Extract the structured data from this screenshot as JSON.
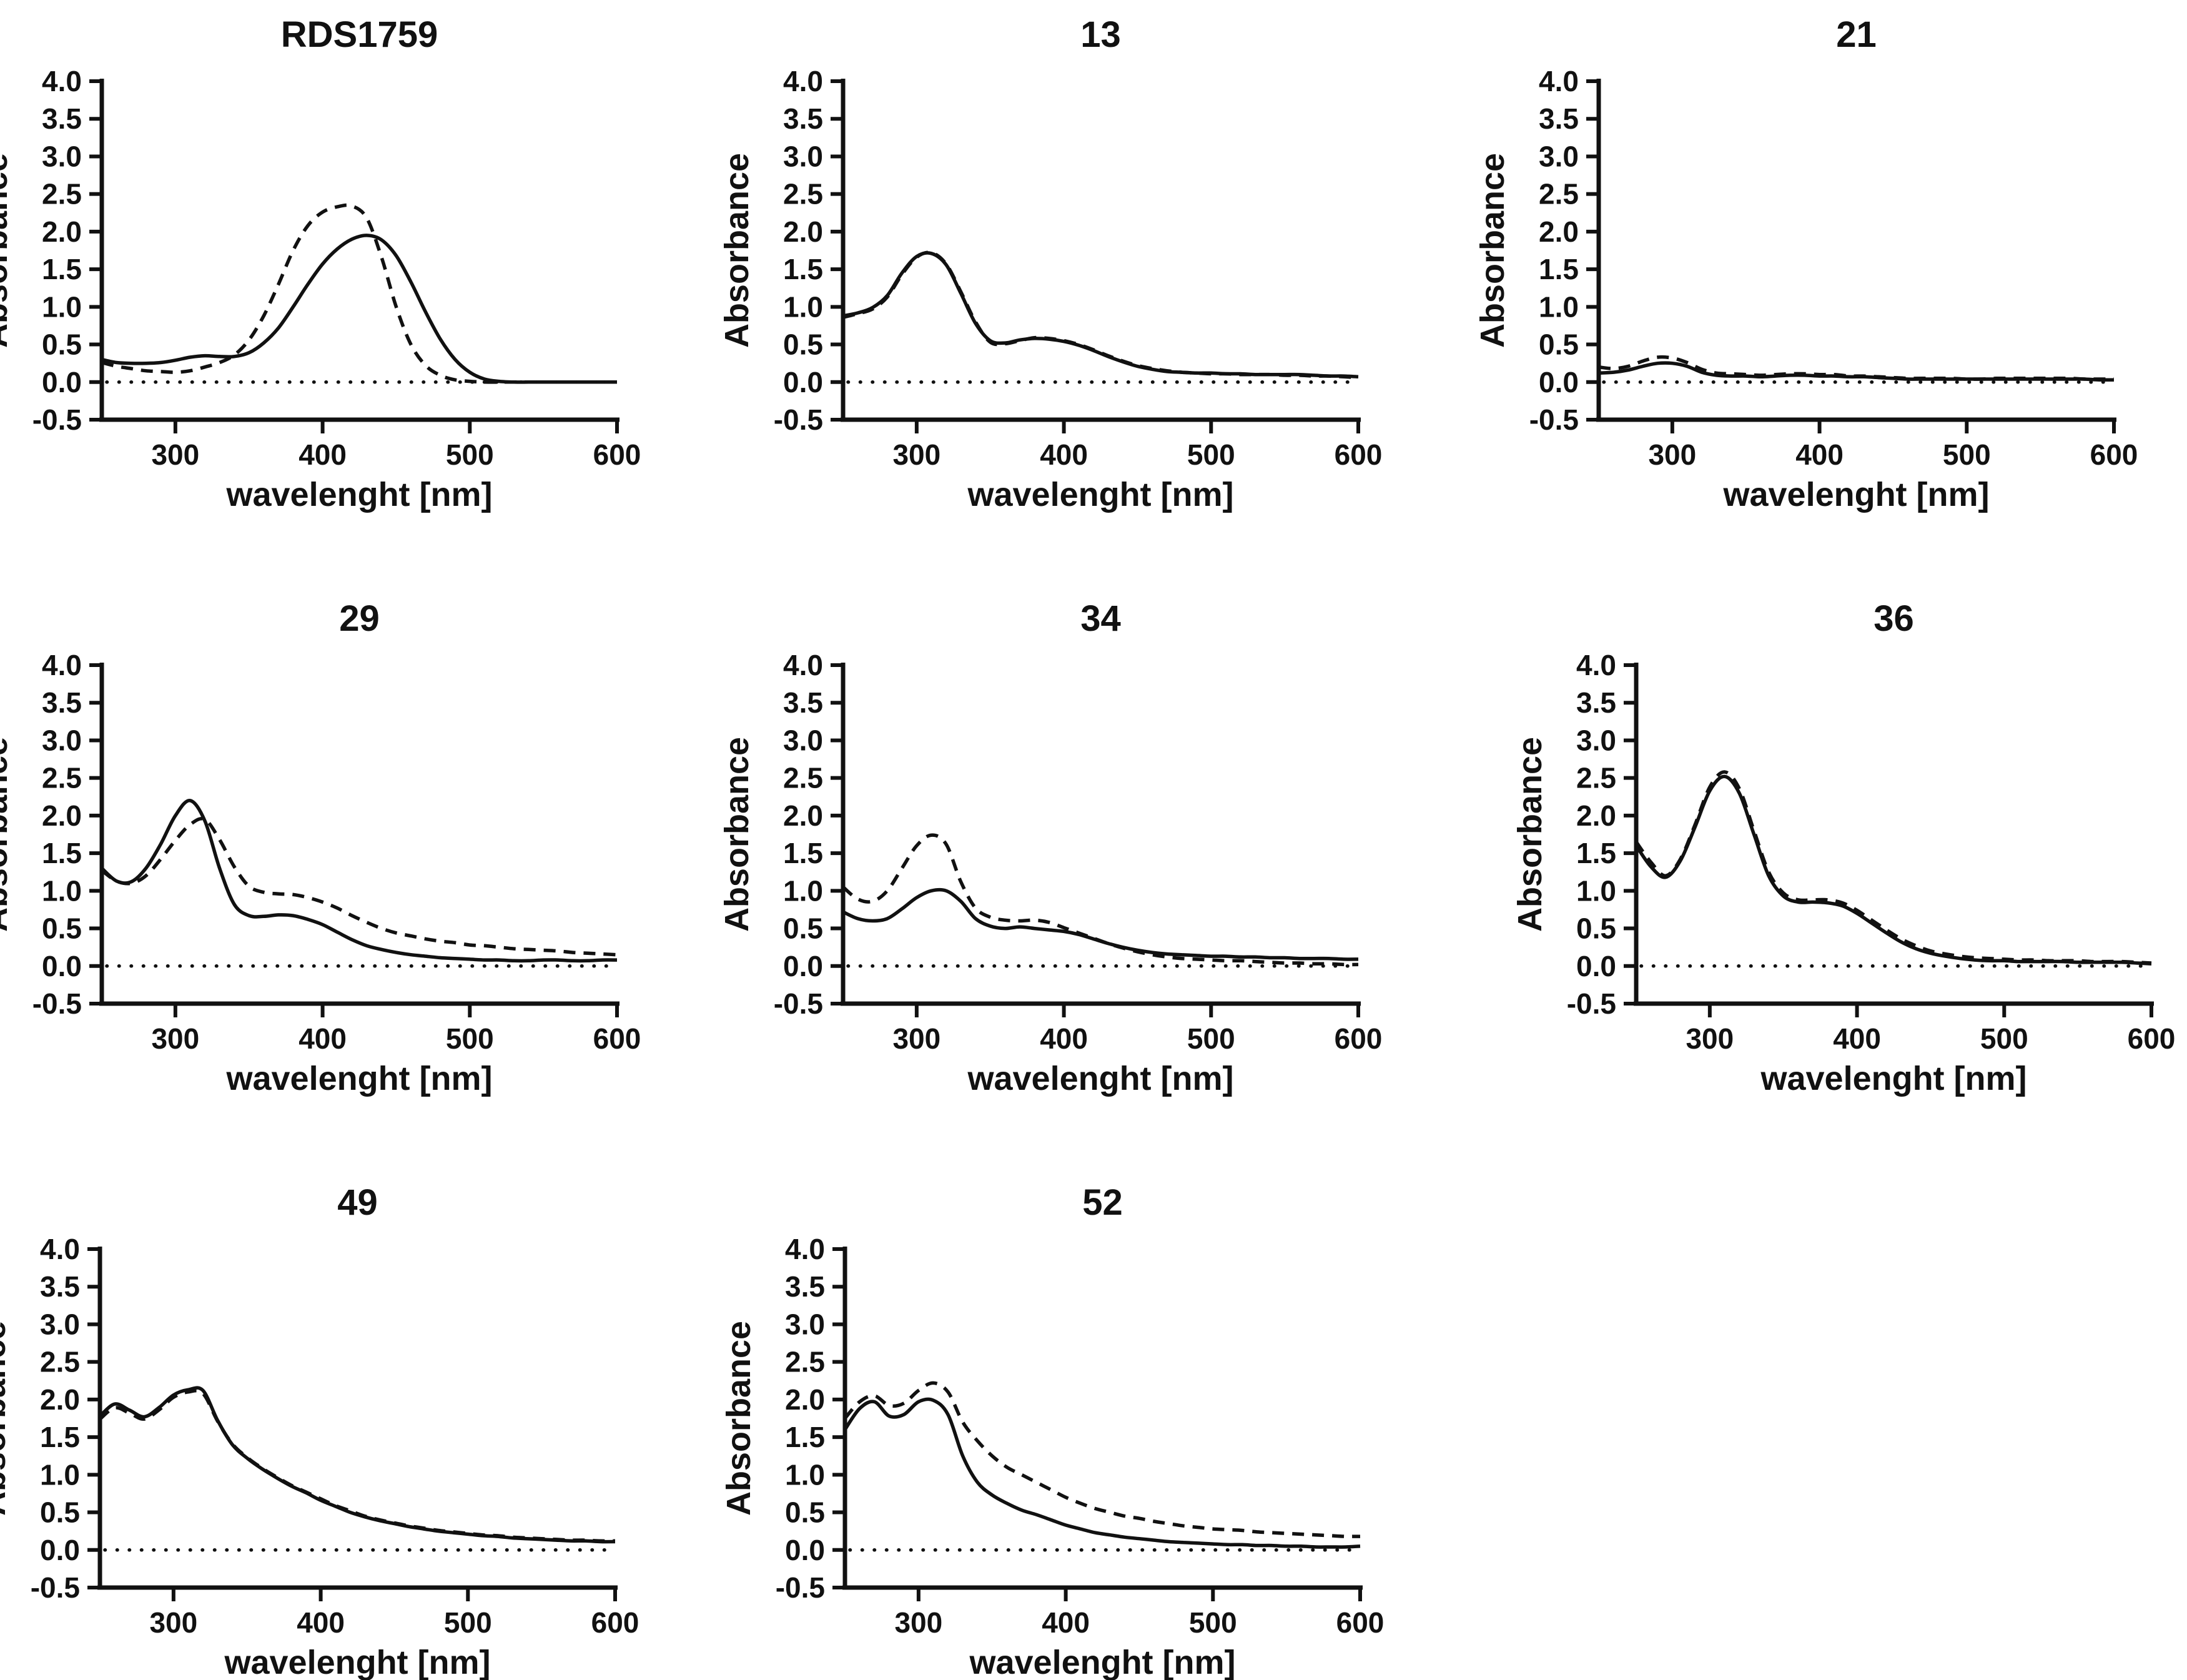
{
  "figure": {
    "background": "#ffffff",
    "ink_color": "#111111",
    "axis": {
      "xlabel": "wavelenght [nm]",
      "ylabel": "Absorbance",
      "xlim": [
        250,
        600
      ],
      "ylim": [
        -0.5,
        4.0
      ],
      "xticks": [
        300,
        400,
        500,
        600
      ],
      "xtick_labels": [
        "300",
        "400",
        "500",
        "600"
      ],
      "yticks": [
        4.0,
        3.5,
        3.0,
        2.5,
        2.0,
        1.5,
        1.0,
        0.5,
        0.0,
        -0.5
      ],
      "ytick_labels": [
        "4.0",
        "3.5",
        "3.0",
        "2.5",
        "2.0",
        "1.5",
        "1.0",
        "0.5",
        "0.0",
        "-0.5"
      ],
      "baseline": 0.0
    },
    "x_nm": [
      250,
      260,
      270,
      280,
      290,
      300,
      310,
      320,
      330,
      340,
      350,
      360,
      370,
      380,
      390,
      400,
      410,
      420,
      430,
      440,
      450,
      460,
      470,
      480,
      490,
      500,
      510,
      520,
      530,
      540,
      550,
      560,
      570,
      580,
      590,
      600
    ]
  },
  "chart_data": [
    {
      "title": "RDS1759",
      "type": "line",
      "xlabel": "wavelenght [nm]",
      "ylabel": "Absorbance",
      "xlim": [
        250,
        600
      ],
      "ylim": [
        -0.5,
        4.0
      ],
      "grid": false,
      "legend": "none",
      "series": [
        {
          "name": "solid-spectrum",
          "style": "solid",
          "y": [
            0.3,
            0.26,
            0.25,
            0.25,
            0.26,
            0.29,
            0.33,
            0.35,
            0.34,
            0.34,
            0.39,
            0.52,
            0.72,
            1.0,
            1.3,
            1.57,
            1.77,
            1.9,
            1.95,
            1.89,
            1.68,
            1.33,
            0.93,
            0.57,
            0.3,
            0.13,
            0.04,
            0.01,
            0.0,
            0.0,
            0.0,
            0.0,
            0.0,
            0.0,
            0.0,
            0.0
          ]
        },
        {
          "name": "dashed-spectrum",
          "style": "dashed",
          "y": [
            0.26,
            0.21,
            0.18,
            0.15,
            0.14,
            0.13,
            0.15,
            0.2,
            0.26,
            0.36,
            0.56,
            0.88,
            1.3,
            1.75,
            2.08,
            2.26,
            2.33,
            2.34,
            2.18,
            1.66,
            1.0,
            0.5,
            0.22,
            0.09,
            0.03,
            0.01,
            0.0,
            0.0,
            0.0,
            0.0,
            0.0,
            0.0,
            0.0,
            0.0,
            0.0,
            0.0
          ]
        }
      ]
    },
    {
      "title": "13",
      "type": "line",
      "xlabel": "wavelenght [nm]",
      "ylabel": "Absorbance",
      "xlim": [
        250,
        600
      ],
      "ylim": [
        -0.5,
        4.0
      ],
      "grid": false,
      "legend": "none",
      "series": [
        {
          "name": "solid-spectrum",
          "style": "solid",
          "y": [
            0.88,
            0.92,
            0.99,
            1.15,
            1.45,
            1.67,
            1.71,
            1.56,
            1.18,
            0.78,
            0.55,
            0.52,
            0.56,
            0.58,
            0.57,
            0.54,
            0.49,
            0.42,
            0.34,
            0.27,
            0.21,
            0.17,
            0.14,
            0.13,
            0.12,
            0.12,
            0.11,
            0.11,
            0.1,
            0.1,
            0.1,
            0.1,
            0.09,
            0.08,
            0.08,
            0.07
          ]
        },
        {
          "name": "dashed-spectrum",
          "style": "dashed",
          "y": [
            0.86,
            0.91,
            0.97,
            1.13,
            1.43,
            1.66,
            1.72,
            1.57,
            1.2,
            0.8,
            0.53,
            0.51,
            0.55,
            0.59,
            0.58,
            0.55,
            0.5,
            0.43,
            0.35,
            0.28,
            0.22,
            0.18,
            0.15,
            0.13,
            0.12,
            0.11,
            0.11,
            0.1,
            0.1,
            0.1,
            0.09,
            0.09,
            0.08,
            0.08,
            0.07,
            0.06
          ]
        }
      ]
    },
    {
      "title": "21",
      "type": "line",
      "xlabel": "wavelenght [nm]",
      "ylabel": "Absorbance",
      "xlim": [
        250,
        600
      ],
      "ylim": [
        -0.5,
        4.0
      ],
      "grid": false,
      "legend": "none",
      "series": [
        {
          "name": "solid-spectrum",
          "style": "solid",
          "y": [
            0.12,
            0.13,
            0.16,
            0.21,
            0.25,
            0.25,
            0.21,
            0.13,
            0.09,
            0.08,
            0.08,
            0.07,
            0.08,
            0.09,
            0.09,
            0.08,
            0.08,
            0.07,
            0.07,
            0.06,
            0.05,
            0.04,
            0.04,
            0.04,
            0.04,
            0.04,
            0.04,
            0.04,
            0.04,
            0.04,
            0.04,
            0.04,
            0.04,
            0.04,
            0.03,
            0.03
          ]
        },
        {
          "name": "dashed-spectrum",
          "style": "dashed",
          "y": [
            0.2,
            0.18,
            0.21,
            0.28,
            0.33,
            0.32,
            0.26,
            0.17,
            0.12,
            0.11,
            0.1,
            0.09,
            0.1,
            0.11,
            0.11,
            0.1,
            0.1,
            0.08,
            0.08,
            0.07,
            0.06,
            0.05,
            0.05,
            0.05,
            0.05,
            0.04,
            0.04,
            0.05,
            0.05,
            0.05,
            0.05,
            0.05,
            0.05,
            0.04,
            0.04,
            0.04
          ]
        }
      ]
    },
    {
      "title": "29",
      "type": "line",
      "xlabel": "wavelenght [nm]",
      "ylabel": "Absorbance",
      "xlim": [
        250,
        600
      ],
      "ylim": [
        -0.5,
        4.0
      ],
      "grid": false,
      "legend": "none",
      "series": [
        {
          "name": "solid-spectrum",
          "style": "solid",
          "y": [
            1.3,
            1.13,
            1.12,
            1.3,
            1.62,
            2.0,
            2.2,
            1.93,
            1.3,
            0.82,
            0.67,
            0.66,
            0.68,
            0.67,
            0.62,
            0.55,
            0.45,
            0.35,
            0.27,
            0.22,
            0.18,
            0.15,
            0.13,
            0.11,
            0.1,
            0.09,
            0.08,
            0.08,
            0.07,
            0.07,
            0.08,
            0.08,
            0.07,
            0.07,
            0.08,
            0.08
          ]
        },
        {
          "name": "dashed-spectrum",
          "style": "dashed",
          "y": [
            1.27,
            1.13,
            1.1,
            1.2,
            1.42,
            1.67,
            1.88,
            1.95,
            1.68,
            1.32,
            1.06,
            0.98,
            0.96,
            0.95,
            0.91,
            0.85,
            0.77,
            0.67,
            0.58,
            0.5,
            0.44,
            0.4,
            0.36,
            0.33,
            0.31,
            0.28,
            0.27,
            0.25,
            0.23,
            0.22,
            0.21,
            0.2,
            0.18,
            0.17,
            0.16,
            0.15
          ]
        }
      ]
    },
    {
      "title": "34",
      "type": "line",
      "xlabel": "wavelenght [nm]",
      "ylabel": "Absorbance",
      "xlim": [
        250,
        600
      ],
      "ylim": [
        -0.5,
        4.0
      ],
      "grid": false,
      "legend": "none",
      "series": [
        {
          "name": "solid-spectrum",
          "style": "solid",
          "y": [
            0.72,
            0.63,
            0.6,
            0.63,
            0.76,
            0.91,
            1.0,
            1.0,
            0.86,
            0.63,
            0.53,
            0.5,
            0.52,
            0.5,
            0.48,
            0.46,
            0.42,
            0.36,
            0.3,
            0.25,
            0.21,
            0.18,
            0.16,
            0.15,
            0.14,
            0.13,
            0.13,
            0.12,
            0.12,
            0.11,
            0.11,
            0.1,
            0.1,
            0.1,
            0.09,
            0.09
          ]
        },
        {
          "name": "dashed-spectrum",
          "style": "dashed",
          "y": [
            1.05,
            0.89,
            0.86,
            1.0,
            1.3,
            1.6,
            1.74,
            1.62,
            1.12,
            0.77,
            0.65,
            0.61,
            0.6,
            0.61,
            0.58,
            0.51,
            0.44,
            0.37,
            0.3,
            0.24,
            0.19,
            0.15,
            0.12,
            0.1,
            0.09,
            0.08,
            0.07,
            0.07,
            0.06,
            0.05,
            0.04,
            0.04,
            0.03,
            0.03,
            0.02,
            0.02
          ]
        }
      ]
    },
    {
      "title": "36",
      "type": "line",
      "xlabel": "wavelenght [nm]",
      "ylabel": "Absorbance",
      "xlim": [
        250,
        600
      ],
      "ylim": [
        -0.5,
        4.0
      ],
      "grid": false,
      "legend": "none",
      "series": [
        {
          "name": "solid-spectrum",
          "style": "solid",
          "y": [
            1.6,
            1.32,
            1.18,
            1.4,
            1.85,
            2.33,
            2.52,
            2.3,
            1.75,
            1.2,
            0.93,
            0.85,
            0.85,
            0.84,
            0.8,
            0.7,
            0.57,
            0.44,
            0.32,
            0.23,
            0.17,
            0.13,
            0.1,
            0.08,
            0.07,
            0.07,
            0.06,
            0.06,
            0.06,
            0.06,
            0.05,
            0.05,
            0.05,
            0.05,
            0.04,
            0.03
          ]
        },
        {
          "name": "dashed-spectrum",
          "style": "dashed",
          "y": [
            1.65,
            1.38,
            1.2,
            1.42,
            1.88,
            2.38,
            2.58,
            2.36,
            1.8,
            1.25,
            0.97,
            0.88,
            0.88,
            0.88,
            0.84,
            0.74,
            0.61,
            0.48,
            0.36,
            0.27,
            0.2,
            0.16,
            0.13,
            0.11,
            0.1,
            0.09,
            0.08,
            0.08,
            0.07,
            0.07,
            0.07,
            0.06,
            0.06,
            0.06,
            0.05,
            0.04
          ]
        }
      ]
    },
    {
      "title": "49",
      "type": "line",
      "xlabel": "wavelenght [nm]",
      "ylabel": "Absorbance",
      "xlim": [
        250,
        600
      ],
      "ylim": [
        -0.5,
        4.0
      ],
      "grid": false,
      "legend": "none",
      "series": [
        {
          "name": "solid-spectrum",
          "style": "solid",
          "y": [
            1.78,
            1.94,
            1.86,
            1.77,
            1.89,
            2.06,
            2.13,
            2.12,
            1.72,
            1.4,
            1.22,
            1.08,
            0.96,
            0.85,
            0.76,
            0.66,
            0.58,
            0.5,
            0.44,
            0.39,
            0.35,
            0.31,
            0.28,
            0.25,
            0.23,
            0.21,
            0.19,
            0.18,
            0.16,
            0.15,
            0.14,
            0.13,
            0.12,
            0.12,
            0.11,
            0.11
          ]
        },
        {
          "name": "dashed-spectrum",
          "style": "dashed",
          "y": [
            1.74,
            1.89,
            1.82,
            1.74,
            1.86,
            2.03,
            2.1,
            2.08,
            1.71,
            1.41,
            1.23,
            1.09,
            0.97,
            0.86,
            0.77,
            0.68,
            0.59,
            0.52,
            0.45,
            0.4,
            0.36,
            0.32,
            0.29,
            0.26,
            0.24,
            0.22,
            0.2,
            0.19,
            0.17,
            0.16,
            0.15,
            0.14,
            0.13,
            0.13,
            0.12,
            0.12
          ]
        }
      ]
    },
    {
      "title": "52",
      "type": "line",
      "xlabel": "wavelenght [nm]",
      "ylabel": "Absorbance",
      "xlim": [
        250,
        600
      ],
      "ylim": [
        -0.5,
        4.0
      ],
      "grid": false,
      "legend": "none",
      "series": [
        {
          "name": "solid-spectrum",
          "style": "solid",
          "y": [
            1.6,
            1.88,
            1.97,
            1.78,
            1.8,
            1.97,
            1.99,
            1.8,
            1.25,
            0.9,
            0.73,
            0.62,
            0.53,
            0.47,
            0.4,
            0.33,
            0.28,
            0.23,
            0.2,
            0.17,
            0.15,
            0.13,
            0.11,
            0.1,
            0.09,
            0.08,
            0.07,
            0.07,
            0.06,
            0.06,
            0.05,
            0.05,
            0.04,
            0.04,
            0.04,
            0.05
          ]
        },
        {
          "name": "dashed-spectrum",
          "style": "dashed",
          "y": [
            1.75,
            1.97,
            2.05,
            1.92,
            1.95,
            2.12,
            2.22,
            2.1,
            1.7,
            1.45,
            1.25,
            1.1,
            1.0,
            0.9,
            0.8,
            0.7,
            0.62,
            0.55,
            0.5,
            0.45,
            0.42,
            0.38,
            0.35,
            0.32,
            0.3,
            0.28,
            0.27,
            0.26,
            0.24,
            0.23,
            0.22,
            0.21,
            0.2,
            0.19,
            0.18,
            0.18
          ]
        }
      ]
    }
  ]
}
